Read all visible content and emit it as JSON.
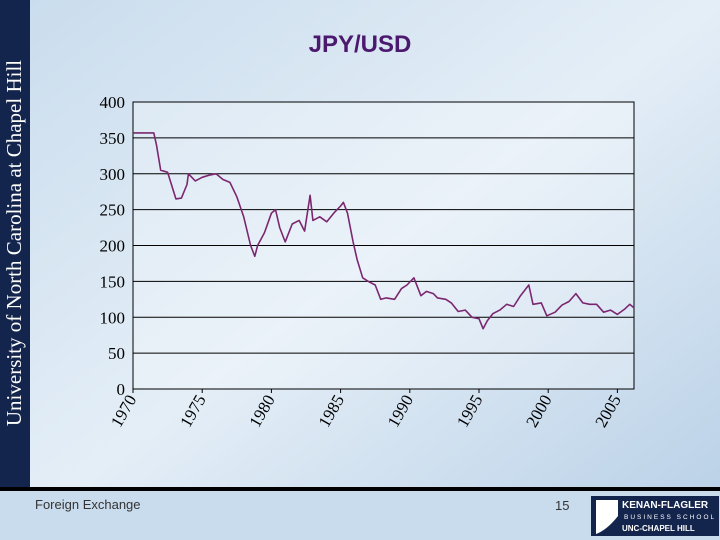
{
  "sidebar": {
    "text": "University of North Carolina at Chapel Hill"
  },
  "footer": {
    "topic": "Foreign Exchange",
    "page": "15"
  },
  "logo": {
    "name": "KENAN-FLAGLER",
    "school": "BUSINESS SCHOOL",
    "university": "UNC-CHAPEL HILL"
  },
  "chart_data": {
    "type": "line",
    "title": "JPY/USD",
    "x": [
      1970,
      1971.5,
      1971.7,
      1972,
      1972.5,
      1973.1,
      1973.5,
      1973.9,
      1974,
      1974.5,
      1975,
      1975.5,
      1976,
      1976.5,
      1977,
      1977.5,
      1978,
      1978.5,
      1978.8,
      1979,
      1979.5,
      1980,
      1980.3,
      1980.6,
      1981,
      1981.5,
      1982,
      1982.4,
      1982.8,
      1983,
      1983.5,
      1984,
      1984.5,
      1985,
      1985.2,
      1985.5,
      1985.9,
      1986.2,
      1986.6,
      1987,
      1987.5,
      1987.9,
      1988.3,
      1988.9,
      1989.4,
      1989.8,
      1990.3,
      1990.8,
      1991.2,
      1991.7,
      1992,
      1992.6,
      1993,
      1993.5,
      1994,
      1994.5,
      1995,
      1995.3,
      1995.6,
      1996,
      1996.5,
      1997,
      1997.5,
      1998,
      1998.6,
      1998.9,
      1999.5,
      1999.9,
      2000.5,
      2001,
      2001.5,
      2002,
      2002.5,
      2003,
      2003.5,
      2004,
      2004.5,
      2005,
      2005.5,
      2005.9,
      2006.2
    ],
    "values": [
      357,
      357,
      340,
      305,
      302,
      265,
      266,
      285,
      300,
      290,
      295,
      298,
      300,
      292,
      288,
      268,
      240,
      200,
      185,
      200,
      218,
      245,
      250,
      225,
      205,
      230,
      235,
      220,
      270,
      235,
      240,
      233,
      245,
      255,
      260,
      245,
      205,
      180,
      155,
      150,
      145,
      125,
      127,
      125,
      140,
      145,
      155,
      130,
      136,
      133,
      127,
      125,
      120,
      108,
      110,
      100,
      98,
      84,
      95,
      105,
      110,
      118,
      115,
      130,
      145,
      118,
      120,
      102,
      107,
      117,
      122,
      133,
      120,
      118,
      118,
      107,
      110,
      104,
      111,
      118,
      113
    ],
    "color": "#7b2770",
    "xlim": [
      1970,
      2006.2
    ],
    "xticks": [
      1970,
      1975,
      1980,
      1985,
      1990,
      1995,
      2000,
      2005
    ],
    "ylim": [
      0,
      400
    ],
    "yticks": [
      0,
      50,
      100,
      150,
      200,
      250,
      300,
      350,
      400
    ],
    "grid": true
  }
}
